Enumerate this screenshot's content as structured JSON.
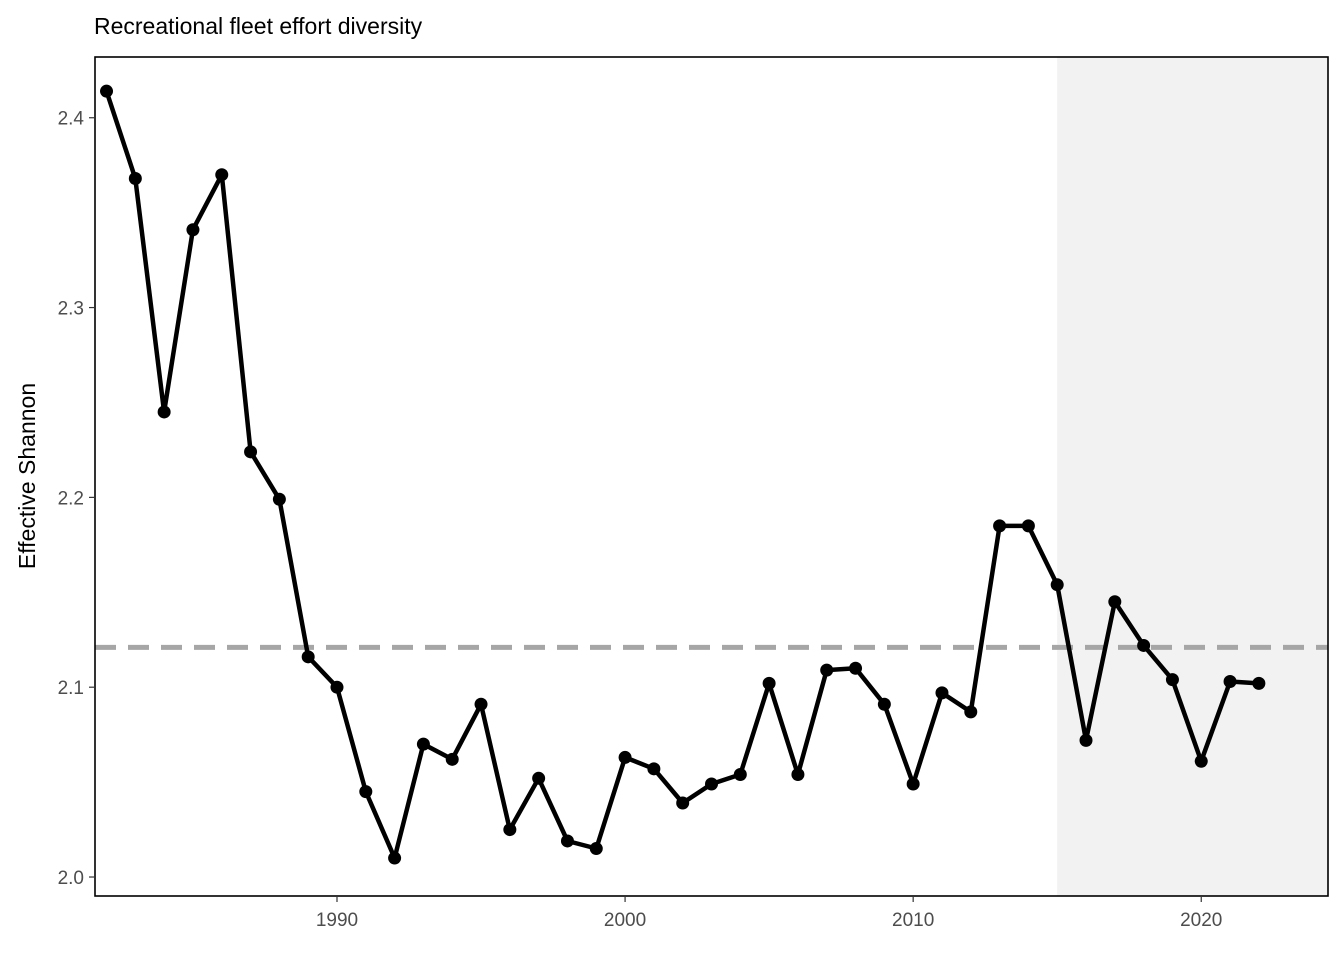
{
  "chart_data": {
    "type": "line",
    "title": "Recreational fleet effort diversity",
    "xlabel": "",
    "ylabel": "Effective Shannon",
    "xlim": [
      1981.6,
      2024.4
    ],
    "ylim": [
      1.99,
      2.432
    ],
    "x_ticks": [
      1990,
      2000,
      2010,
      2020
    ],
    "y_ticks": [
      2.0,
      2.1,
      2.2,
      2.3,
      2.4
    ],
    "y_tick_labels": [
      "2.0",
      "2.1",
      "2.2",
      "2.3",
      "2.4"
    ],
    "grid": false,
    "reference_line": {
      "y": 2.121,
      "style": "dashed",
      "color": "#a6a6a6"
    },
    "shaded_region": {
      "x_start": 2015,
      "x_end": 2024.4,
      "color": "#f2f2f2"
    },
    "series": [
      {
        "color": "#000000",
        "x": [
          1982,
          1983,
          1984,
          1985,
          1986,
          1987,
          1988,
          1989,
          1990,
          1991,
          1992,
          1993,
          1994,
          1995,
          1996,
          1997,
          1998,
          1999,
          2000,
          2001,
          2002,
          2003,
          2004,
          2005,
          2006,
          2007,
          2008,
          2009,
          2010,
          2011,
          2012,
          2013,
          2014,
          2015,
          2016,
          2017,
          2018,
          2019,
          2020,
          2021,
          2022
        ],
        "y": [
          2.414,
          2.368,
          2.245,
          2.341,
          2.37,
          2.224,
          2.199,
          2.116,
          2.1,
          2.045,
          2.01,
          2.07,
          2.062,
          2.091,
          2.025,
          2.052,
          2.019,
          2.015,
          2.063,
          2.057,
          2.039,
          2.049,
          2.054,
          2.102,
          2.054,
          2.109,
          2.11,
          2.091,
          2.049,
          2.097,
          2.087,
          2.185,
          2.185,
          2.154,
          2.072,
          2.145,
          2.122,
          2.104,
          2.061,
          2.103,
          2.102
        ]
      }
    ]
  }
}
